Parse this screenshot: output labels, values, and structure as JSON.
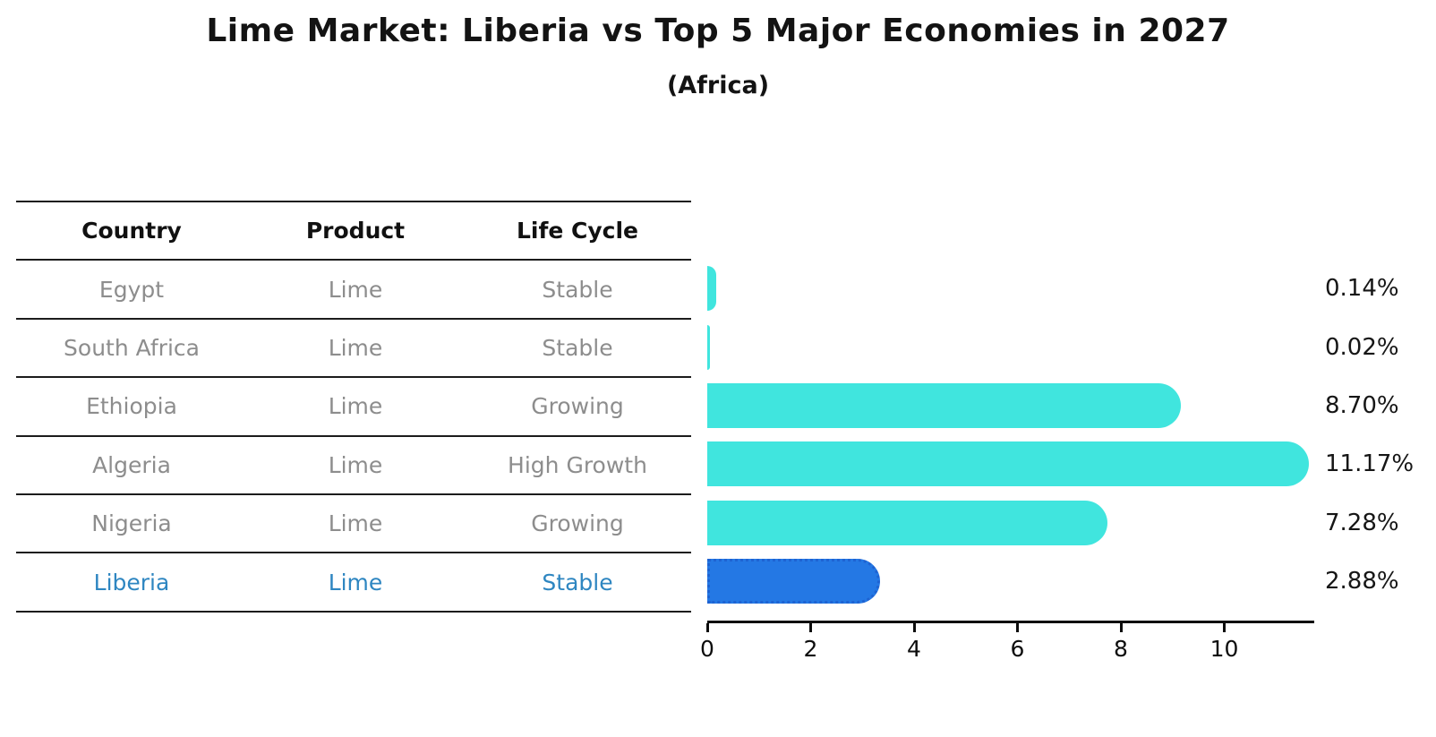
{
  "title": "Lime Market: Liberia vs Top 5 Major Economies in 2027",
  "subtitle": "(Africa)",
  "table": {
    "headers": [
      "Country",
      "Product",
      "Life Cycle"
    ],
    "rows": [
      {
        "country": "Egypt",
        "product": "Lime",
        "life_cycle": "Stable",
        "highlight": false
      },
      {
        "country": "South Africa",
        "product": "Lime",
        "life_cycle": "Stable",
        "highlight": false
      },
      {
        "country": "Ethiopia",
        "product": "Lime",
        "life_cycle": "Growing",
        "highlight": false
      },
      {
        "country": "Algeria",
        "product": "Lime",
        "life_cycle": "High Growth",
        "highlight": false
      },
      {
        "country": "Nigeria",
        "product": "Lime",
        "life_cycle": "Growing",
        "highlight": true
      }
    ],
    "highlight_row": {
      "country": "Liberia",
      "product": "Lime",
      "life_cycle": "Stable"
    }
  },
  "chart_data": {
    "type": "bar",
    "orientation": "horizontal",
    "title": "Lime Market: Liberia vs Top 5 Major Economies in 2027",
    "subtitle": "(Africa)",
    "categories": [
      "Egypt",
      "South Africa",
      "Ethiopia",
      "Algeria",
      "Nigeria",
      "Liberia"
    ],
    "values": [
      0.14,
      0.02,
      8.7,
      11.17,
      7.28,
      2.88
    ],
    "value_labels": [
      "0.14%",
      "0.02%",
      "8.70%",
      "11.17%",
      "7.28%",
      "2.88%"
    ],
    "x_ticks": [
      0,
      2,
      4,
      6,
      8,
      10
    ],
    "xlim": [
      0,
      11.74
    ],
    "grid": false,
    "legend": false,
    "unit": "%",
    "highlight_index": 5,
    "colors": {
      "bar": "#40e5de",
      "highlight_fill": "#2478e4",
      "highlight_border": "#1e63d2",
      "highlight_text": "#2e86c1",
      "table_text": "#8d8d8d",
      "axis": "#0d0d0d"
    }
  }
}
